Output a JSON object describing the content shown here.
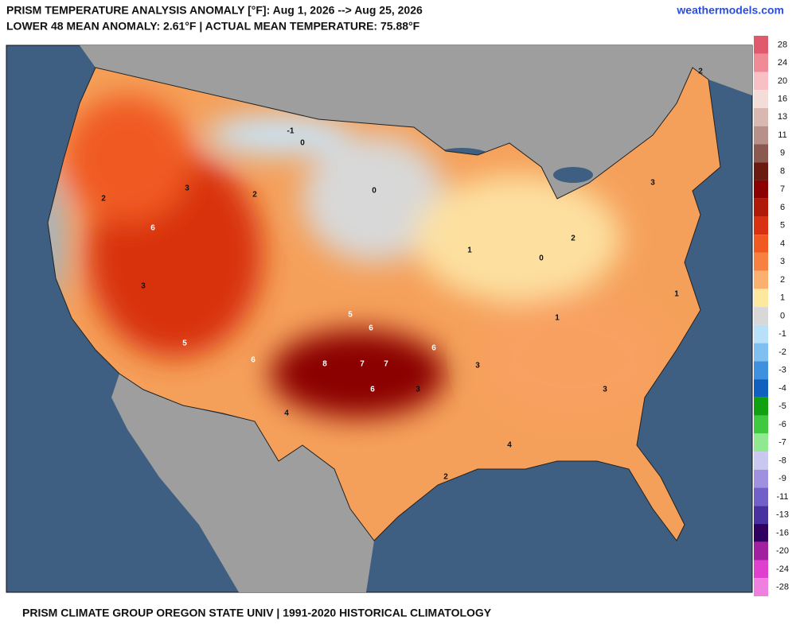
{
  "header": {
    "title": "PRISM TEMPERATURE ANALYSIS ANOMALY [°F]: Aug 1, 2026 --> Aug 25, 2026",
    "subtitle": "LOWER 48 MEAN ANOMALY: 2.61°F | ACTUAL MEAN TEMPERATURE: 75.88°F",
    "site": "weathermodels.com"
  },
  "footer": {
    "text": "PRISM CLIMATE GROUP OREGON STATE UNIV | 1991-2020 HISTORICAL CLIMATOLOGY"
  },
  "colorbar": {
    "levels": [
      28,
      24,
      20,
      16,
      13,
      11,
      9,
      8,
      7,
      6,
      5,
      4,
      3,
      2,
      1,
      0,
      -1,
      -2,
      -3,
      -4,
      -5,
      -6,
      -7,
      -8,
      -9,
      -11,
      -13,
      -16,
      -20,
      -24,
      -28
    ],
    "colors": [
      "#e05a6e",
      "#f08a96",
      "#f8c0c4",
      "#f4dcd8",
      "#d8b8b0",
      "#b8908a",
      "#8a5a50",
      "#6a1a10",
      "#8b0000",
      "#b01a08",
      "#d83010",
      "#f05a20",
      "#f88040",
      "#fcb070",
      "#fde8a0",
      "#d8d8d8",
      "#b8e0f8",
      "#80c0f0",
      "#4090e0",
      "#1060c0",
      "#10a010",
      "#40c840",
      "#90e890",
      "#c8c8f0",
      "#a090e0",
      "#7060c8",
      "#4830a0",
      "#300060",
      "#a020a0",
      "#e040d0",
      "#f080e0"
    ]
  },
  "map": {
    "labels": [
      8,
      7,
      7,
      6,
      6,
      6,
      6,
      6,
      5,
      5,
      4,
      3,
      3,
      3,
      2,
      2,
      2,
      1,
      1,
      0,
      0,
      0,
      -1,
      3,
      2,
      4,
      3,
      2,
      1,
      3
    ]
  }
}
